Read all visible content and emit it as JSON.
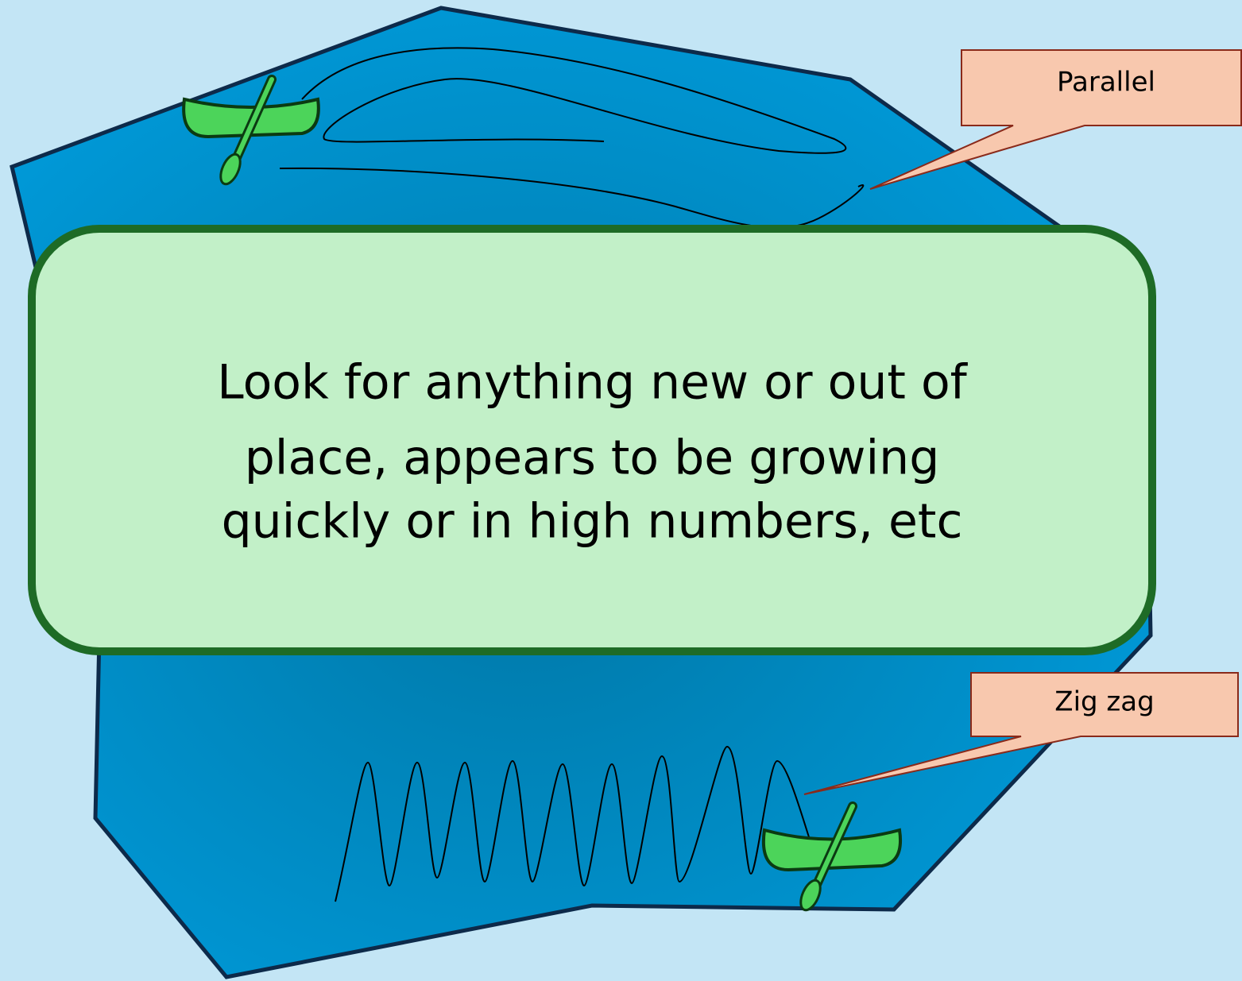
{
  "callouts": [
    {
      "label": "Parallel"
    },
    {
      "label": "Zig zag"
    }
  ],
  "message": {
    "lines": [
      "Look for anything new or out of",
      "place, appears to be growing",
      "quickly or in high numbers, etc"
    ]
  }
}
